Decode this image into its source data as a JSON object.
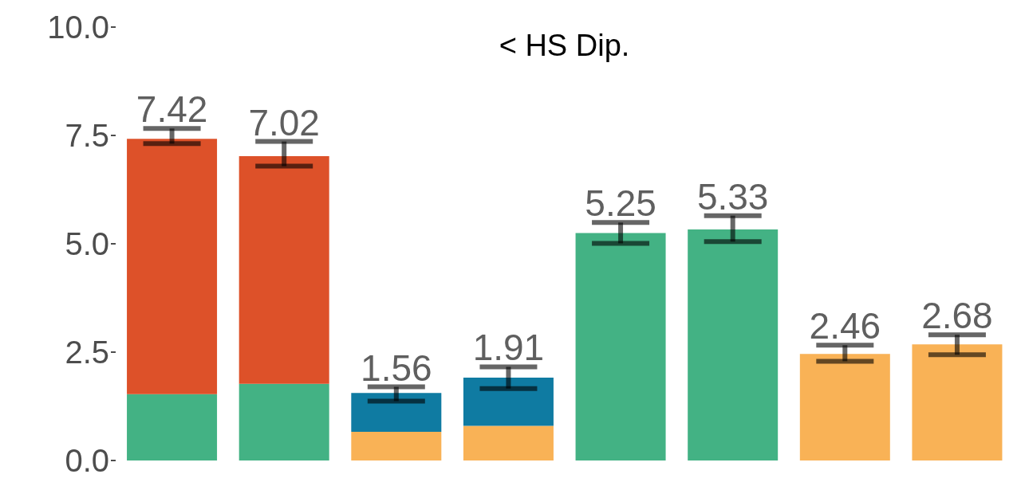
{
  "chart_data": {
    "type": "bar",
    "title": "< HS Dip.",
    "stacked": true,
    "categories": [
      null,
      null,
      null,
      null,
      null,
      null,
      null,
      null
    ],
    "series": [
      {
        "color": "#43b284",
        "values": [
          1.53,
          1.77,
          null,
          null,
          null,
          null,
          null,
          null
        ]
      },
      {
        "color": "#f9b256",
        "values": [
          null,
          null,
          0.66,
          0.8,
          null,
          null,
          null,
          null
        ]
      },
      {
        "color": "#dd5129",
        "values": [
          5.89,
          5.25,
          null,
          null,
          null,
          null,
          null,
          null
        ],
        "errors": [
          [
            7.31,
            7.66
          ],
          [
            6.79,
            7.36
          ],
          null,
          null,
          null,
          null,
          null,
          null
        ]
      },
      {
        "color": "#0f7ba2",
        "values": [
          null,
          null,
          0.9,
          1.11,
          null,
          null,
          null,
          null
        ],
        "errors": [
          null,
          null,
          [
            1.37,
            1.7
          ],
          [
            1.66,
            2.16
          ],
          null,
          null,
          null,
          null
        ]
      },
      {
        "color": "#43b284",
        "values": [
          null,
          null,
          null,
          null,
          5.25,
          5.33,
          null,
          null
        ],
        "errors": [
          null,
          null,
          null,
          null,
          [
            5.01,
            5.49
          ],
          [
            5.05,
            5.65
          ],
          null,
          null
        ]
      },
      {
        "color": "#f9b256",
        "values": [
          null,
          null,
          null,
          null,
          null,
          null,
          2.46,
          2.68
        ],
        "errors": [
          null,
          null,
          null,
          null,
          null,
          null,
          [
            2.29,
            2.66
          ],
          [
            2.44,
            2.9
          ]
        ]
      }
    ],
    "totals": [
      "7.42",
      "7.02",
      "1.56",
      "1.91",
      "5.25",
      "5.33",
      "2.46",
      "2.68"
    ],
    "ylim": [
      0,
      10
    ],
    "yticks": [
      {
        "value": 0,
        "label": "0.0"
      },
      {
        "value": 2.5,
        "label": "2.5"
      },
      {
        "value": 5,
        "label": "5.0"
      },
      {
        "value": 7.5,
        "label": "7.5"
      },
      {
        "value": 10,
        "label": "10.0"
      }
    ],
    "tick_labels": "y",
    "grid": false
  }
}
